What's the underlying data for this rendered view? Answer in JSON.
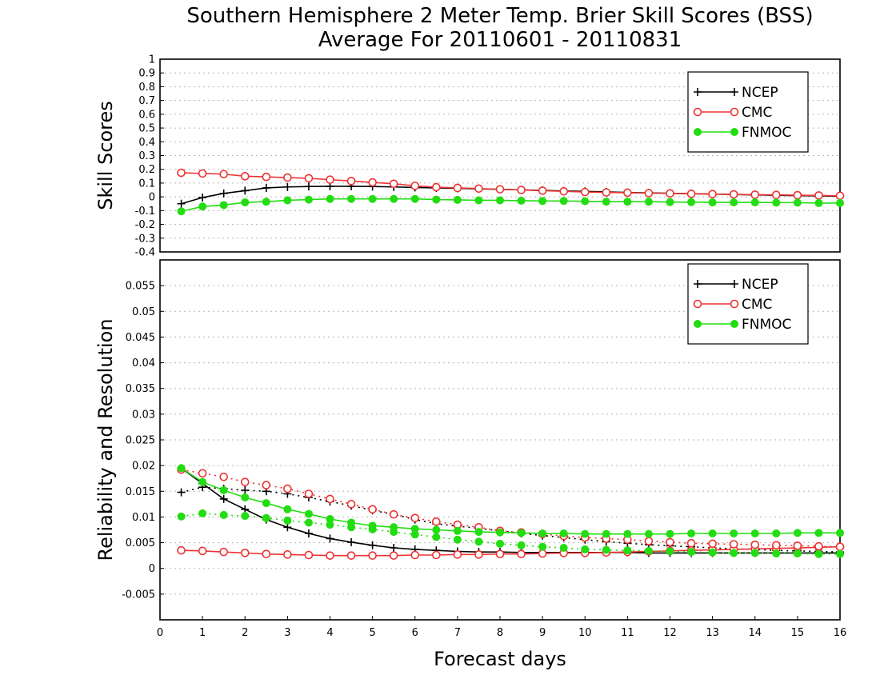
{
  "title_line1": "Southern Hemisphere 2 Meter Temp. Brier Skill Scores (BSS)",
  "title_line2": "Average For 20110601 - 20110831",
  "xlabel": "Forecast days",
  "colors": {
    "NCEP": "#000000",
    "CMC": "#ee3333",
    "FNMOC": "#22dd11"
  },
  "chart_data": [
    {
      "type": "line",
      "ylabel": "Skill Scores",
      "xlim": [
        0,
        16
      ],
      "ylim": [
        -0.4,
        1
      ],
      "yticks": [
        -0.4,
        -0.3,
        -0.2,
        -0.1,
        0,
        0.1,
        0.2,
        0.3,
        0.4,
        0.5,
        0.6,
        0.7,
        0.8,
        0.9,
        1
      ],
      "ytick_labels": [
        "-0.4",
        "-0.3",
        "-0.2",
        "-0.1",
        "0",
        "0.1",
        "0.2",
        "0.3",
        "0.4",
        "0.5",
        "0.6",
        "0.7",
        "0.8",
        "0.9",
        "1"
      ],
      "grid": true,
      "legend_position": "top-right",
      "x": [
        0.5,
        1,
        1.5,
        2,
        2.5,
        3,
        3.5,
        4,
        4.5,
        5,
        5.5,
        6,
        6.5,
        7,
        7.5,
        8,
        8.5,
        9,
        9.5,
        10,
        10.5,
        11,
        11.5,
        12,
        12.5,
        13,
        13.5,
        14,
        14.5,
        15,
        15.5,
        16
      ],
      "series": [
        {
          "name": "NCEP",
          "marker": "plus",
          "style": "solid",
          "values": [
            -0.05,
            -0.005,
            0.025,
            0.045,
            0.065,
            0.072,
            0.075,
            0.077,
            0.077,
            0.075,
            0.072,
            0.068,
            0.065,
            0.062,
            0.058,
            0.055,
            0.051,
            0.047,
            0.043,
            0.04,
            0.036,
            0.032,
            0.029,
            0.026,
            0.023,
            0.02,
            0.017,
            0.014,
            0.011,
            0.009,
            0.007,
            0.005
          ]
        },
        {
          "name": "CMC",
          "marker": "circle-open",
          "style": "solid",
          "values": [
            0.175,
            0.17,
            0.165,
            0.15,
            0.145,
            0.14,
            0.135,
            0.125,
            0.115,
            0.105,
            0.095,
            0.08,
            0.07,
            0.065,
            0.06,
            0.055,
            0.05,
            0.045,
            0.04,
            0.035,
            0.032,
            0.03,
            0.027,
            0.025,
            0.022,
            0.02,
            0.018,
            0.016,
            0.014,
            0.012,
            0.01,
            0.008
          ]
        },
        {
          "name": "FNMOC",
          "marker": "dot",
          "style": "solid",
          "values": [
            -0.105,
            -0.07,
            -0.06,
            -0.04,
            -0.035,
            -0.025,
            -0.02,
            -0.015,
            -0.015,
            -0.015,
            -0.015,
            -0.015,
            -0.02,
            -0.022,
            -0.025,
            -0.025,
            -0.028,
            -0.03,
            -0.03,
            -0.032,
            -0.035,
            -0.035,
            -0.035,
            -0.038,
            -0.038,
            -0.04,
            -0.04,
            -0.04,
            -0.042,
            -0.042,
            -0.045,
            -0.045
          ]
        }
      ]
    },
    {
      "type": "line",
      "ylabel": "Reliability and Resolution",
      "xlim": [
        0,
        16
      ],
      "xticks": [
        0,
        1,
        2,
        3,
        4,
        5,
        6,
        7,
        8,
        9,
        10,
        11,
        12,
        13,
        14,
        15,
        16
      ],
      "xtick_labels": [
        "0",
        "1",
        "2",
        "3",
        "4",
        "5",
        "6",
        "7",
        "8",
        "9",
        "10",
        "11",
        "12",
        "13",
        "14",
        "15",
        "16"
      ],
      "ylim": [
        -0.01,
        0.06
      ],
      "yticks": [
        -0.005,
        0,
        0.005,
        0.01,
        0.015,
        0.02,
        0.025,
        0.03,
        0.035,
        0.04,
        0.045,
        0.05,
        0.055
      ],
      "ytick_labels": [
        "-0.005",
        "0",
        "0.005",
        "0.01",
        "0.015",
        "0.02",
        "0.025",
        "0.03",
        "0.035",
        "0.04",
        "0.045",
        "0.05",
        "0.055"
      ],
      "grid": true,
      "legend_position": "top-right",
      "x": [
        0.5,
        1,
        1.5,
        2,
        2.5,
        3,
        3.5,
        4,
        4.5,
        5,
        5.5,
        6,
        6.5,
        7,
        7.5,
        8,
        8.5,
        9,
        9.5,
        10,
        10.5,
        11,
        11.5,
        12,
        12.5,
        13,
        13.5,
        14,
        14.5,
        15,
        15.5,
        16
      ],
      "series": [
        {
          "name": "NCEP",
          "marker": "plus",
          "style": "solid",
          "values": [
            0.0195,
            0.0165,
            0.0135,
            0.0115,
            0.0095,
            0.008,
            0.0068,
            0.0058,
            0.0051,
            0.0045,
            0.004,
            0.0037,
            0.0035,
            0.0033,
            0.0032,
            0.0032,
            0.0031,
            0.0031,
            0.0031,
            0.0031,
            0.0031,
            0.0031,
            0.003,
            0.003,
            0.003,
            0.003,
            0.003,
            0.003,
            0.003,
            0.003,
            0.003,
            0.003
          ]
        },
        {
          "name": "NCEP",
          "marker": "plus",
          "style": "dotted",
          "values": [
            0.0148,
            0.0158,
            0.0155,
            0.0152,
            0.015,
            0.0145,
            0.0138,
            0.013,
            0.0122,
            0.0113,
            0.0105,
            0.0095,
            0.0087,
            0.0082,
            0.0078,
            0.0073,
            0.0068,
            0.0064,
            0.006,
            0.0056,
            0.0052,
            0.0049,
            0.0046,
            0.0044,
            0.0042,
            0.004,
            0.0038,
            0.0037,
            0.0035,
            0.0034,
            0.0033,
            0.0032
          ]
        },
        {
          "name": "CMC",
          "marker": "circle-open",
          "style": "solid",
          "values": [
            0.0035,
            0.0034,
            0.0032,
            0.003,
            0.0028,
            0.0027,
            0.0026,
            0.0025,
            0.0025,
            0.0025,
            0.0025,
            0.0026,
            0.0026,
            0.0027,
            0.0027,
            0.0028,
            0.0028,
            0.0029,
            0.003,
            0.003,
            0.0031,
            0.0032,
            0.0033,
            0.0034,
            0.0035,
            0.0036,
            0.0037,
            0.0038,
            0.0039,
            0.004,
            0.0041,
            0.0042
          ]
        },
        {
          "name": "CMC",
          "marker": "circle-open",
          "style": "dotted",
          "values": [
            0.0192,
            0.0185,
            0.0178,
            0.0168,
            0.0162,
            0.0155,
            0.0145,
            0.0135,
            0.0125,
            0.0115,
            0.0105,
            0.0098,
            0.0091,
            0.0085,
            0.008,
            0.0073,
            0.007,
            0.0067,
            0.0063,
            0.006,
            0.0058,
            0.0056,
            0.0053,
            0.0051,
            0.0049,
            0.0048,
            0.0047,
            0.0046,
            0.0045,
            0.0044,
            0.0043,
            0.0042
          ]
        },
        {
          "name": "FNMOC",
          "marker": "dot",
          "style": "solid",
          "values": [
            0.0195,
            0.0168,
            0.0152,
            0.0138,
            0.0127,
            0.0115,
            0.0106,
            0.0096,
            0.0089,
            0.0083,
            0.008,
            0.0077,
            0.0075,
            0.0073,
            0.0071,
            0.007,
            0.0069,
            0.0068,
            0.0068,
            0.0067,
            0.0067,
            0.0067,
            0.0067,
            0.0067,
            0.0068,
            0.0068,
            0.0068,
            0.0068,
            0.0068,
            0.0069,
            0.0069,
            0.0069
          ]
        },
        {
          "name": "FNMOC",
          "marker": "dot",
          "style": "dotted",
          "values": [
            0.0101,
            0.0107,
            0.0104,
            0.0102,
            0.0098,
            0.0093,
            0.0089,
            0.0085,
            0.008,
            0.0076,
            0.0071,
            0.0066,
            0.0061,
            0.0056,
            0.0052,
            0.0048,
            0.0045,
            0.0042,
            0.004,
            0.0037,
            0.0036,
            0.0035,
            0.0034,
            0.0033,
            0.0032,
            0.0031,
            0.003,
            0.003,
            0.0029,
            0.0029,
            0.0028,
            0.0028
          ]
        }
      ]
    }
  ]
}
